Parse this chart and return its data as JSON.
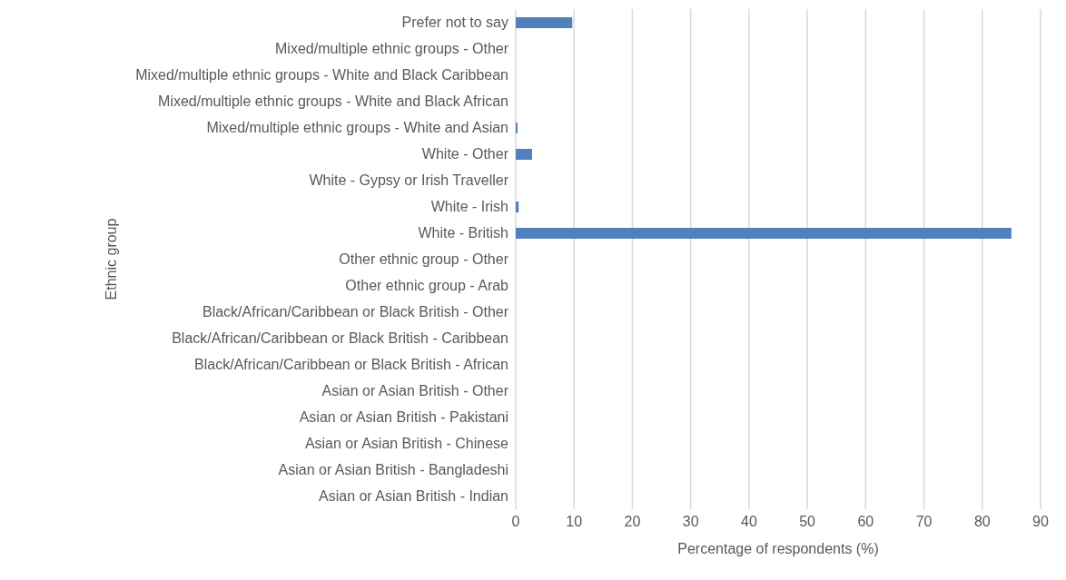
{
  "chart_data": {
    "type": "bar",
    "orientation": "horizontal",
    "xlabel": "Percentage of respondents (%)",
    "ylabel": "Ethnic group",
    "categories": [
      "Prefer not to say",
      "Mixed/multiple ethnic groups - Other",
      "Mixed/multiple ethnic groups - White and Black Caribbean",
      "Mixed/multiple ethnic groups - White and Black African",
      "Mixed/multiple ethnic groups - White and Asian",
      "White - Other",
      "White - Gypsy or Irish Traveller",
      "White - Irish",
      "White - British",
      "Other ethnic group - Other",
      "Other ethnic group - Arab",
      "Black/African/Caribbean or Black British - Other",
      "Black/African/Caribbean or Black British - Caribbean",
      "Black/African/Caribbean or Black British - African",
      "Asian or Asian British - Other",
      "Asian or Asian British - Pakistani",
      "Asian or Asian British - Chinese",
      "Asian or Asian British - Bangladeshi",
      "Asian or Asian British - Indian"
    ],
    "values": [
      9.7,
      0,
      0,
      0,
      0.3,
      2.8,
      0,
      0.5,
      85,
      0,
      0,
      0,
      0,
      0,
      0,
      0,
      0,
      0,
      0
    ],
    "color": "#4f81bd",
    "xlim": [
      0,
      90
    ],
    "xticks": [
      0,
      10,
      20,
      30,
      40,
      50,
      60,
      70,
      80,
      90
    ],
    "grid": "x"
  }
}
